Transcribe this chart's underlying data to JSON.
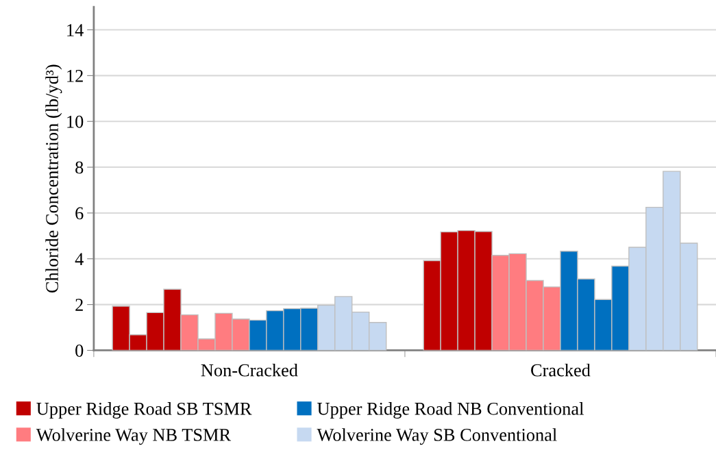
{
  "chart_data": {
    "type": "bar",
    "ylabel": "Chloride Concentration (lb/yd³)",
    "categories": [
      "Non-Cracked",
      "Cracked"
    ],
    "ylim": [
      0,
      15
    ],
    "yticks": [
      0,
      2,
      4,
      6,
      8,
      10,
      12,
      14
    ],
    "grid": "y",
    "legend": "bottom",
    "series": [
      {
        "name": "Upper Ridge Road SB TSMR",
        "color": "#c00000",
        "values": [
          1.93,
          3.92
        ]
      },
      {
        "color": "#c00000",
        "values": [
          0.68,
          5.17
        ]
      },
      {
        "color": "#c00000",
        "values": [
          1.65,
          5.23
        ]
      },
      {
        "color": "#c00000",
        "values": [
          2.67,
          5.19
        ]
      },
      {
        "name": "Wolverine Way NB TSMR",
        "color": "#ff7c80",
        "values": [
          1.55,
          4.15
        ]
      },
      {
        "color": "#ff7c80",
        "values": [
          0.5,
          4.22
        ]
      },
      {
        "color": "#ff7c80",
        "values": [
          1.62,
          3.05
        ]
      },
      {
        "color": "#ff7c80",
        "values": [
          1.37,
          2.77
        ]
      },
      {
        "name": "Upper Ridge Road NB Conventional",
        "color": "#0070c0",
        "values": [
          1.32,
          4.33
        ]
      },
      {
        "color": "#0070c0",
        "values": [
          1.73,
          3.12
        ]
      },
      {
        "color": "#0070c0",
        "values": [
          1.82,
          2.22
        ]
      },
      {
        "color": "#0070c0",
        "values": [
          1.84,
          3.68
        ]
      },
      {
        "name": "Wolverine Way SB Conventional",
        "color": "#c6d9f1",
        "values": [
          1.97,
          4.5
        ]
      },
      {
        "color": "#c6d9f1",
        "values": [
          2.35,
          6.25
        ]
      },
      {
        "color": "#c6d9f1",
        "values": [
          1.67,
          7.82
        ]
      },
      {
        "color": "#c6d9f1",
        "values": [
          1.22,
          4.68
        ]
      }
    ]
  }
}
